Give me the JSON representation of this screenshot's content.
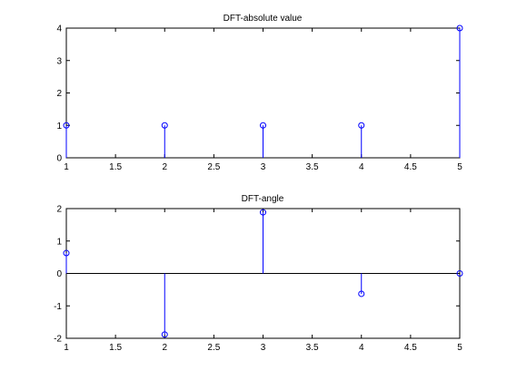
{
  "chart_data": [
    {
      "type": "stem",
      "title": "DFT-absolute value",
      "xlabel": "",
      "ylabel": "",
      "x": [
        1,
        2,
        3,
        4,
        5
      ],
      "values": [
        1,
        1,
        1,
        1,
        4
      ],
      "xlim": [
        1,
        5
      ],
      "ylim": [
        0,
        4
      ],
      "xticks": [
        "1",
        "1.5",
        "2",
        "2.5",
        "3",
        "3.5",
        "4",
        "4.5",
        "5"
      ],
      "yticks": [
        "0",
        "1",
        "2",
        "3",
        "4"
      ],
      "grid": false,
      "color": "#0000ff",
      "marker": "circle"
    },
    {
      "type": "stem",
      "title": "DFT-angle",
      "xlabel": "",
      "ylabel": "",
      "x": [
        1,
        2,
        3,
        4,
        5
      ],
      "values": [
        0.6283,
        -1.885,
        1.885,
        -0.6283,
        0
      ],
      "xlim": [
        1,
        5
      ],
      "ylim": [
        -2,
        2
      ],
      "xticks": [
        "1",
        "1.5",
        "2",
        "2.5",
        "3",
        "3.5",
        "4",
        "4.5",
        "5"
      ],
      "yticks": [
        "-2",
        "-1",
        "0",
        "1",
        "2"
      ],
      "grid": false,
      "color": "#0000ff",
      "marker": "circle",
      "baseline": 0
    }
  ]
}
